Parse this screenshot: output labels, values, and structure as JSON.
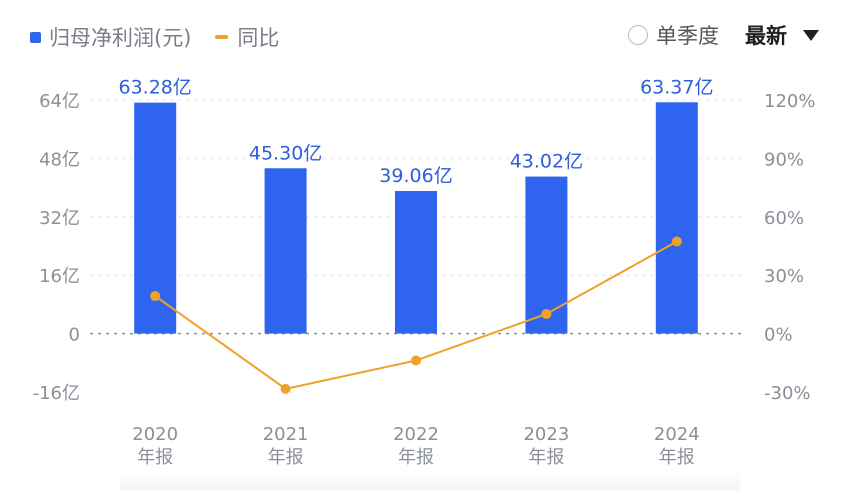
{
  "legend": {
    "bar_label": "归母净利润(元)",
    "line_label": "同比"
  },
  "controls": {
    "season_label": "单季度",
    "latest_label": "最新"
  },
  "colors": {
    "bar": "#2f64ee",
    "bar_label": "#2d5fd8",
    "line": "#f0a127",
    "axis_text": "#8a8f98",
    "grid": "#e3e5ea",
    "zero": "#8a8f98"
  },
  "chart_data": {
    "type": "bar",
    "categories": [
      "2020",
      "2021",
      "2022",
      "2023",
      "2024"
    ],
    "category_sub": [
      "年报",
      "年报",
      "年报",
      "年报",
      "年报"
    ],
    "series": [
      {
        "name": "归母净利润(元)",
        "type": "bar",
        "axis": "left",
        "unit": "亿",
        "values": [
          63.28,
          45.3,
          39.06,
          43.02,
          63.37
        ],
        "labels": [
          "63.28亿",
          "45.30亿",
          "39.06亿",
          "43.02亿",
          "63.37亿"
        ]
      },
      {
        "name": "同比",
        "type": "line",
        "axis": "right",
        "unit": "%",
        "values": [
          19.3,
          -28.4,
          -13.8,
          10.1,
          47.3
        ]
      }
    ],
    "left_axis": {
      "ticks": [
        64,
        48,
        32,
        16,
        0,
        -16
      ],
      "tick_labels": [
        "64亿",
        "48亿",
        "32亿",
        "16亿",
        "0",
        "-16亿"
      ],
      "range": [
        -16,
        64
      ]
    },
    "right_axis": {
      "ticks": [
        120,
        90,
        60,
        30,
        0,
        -30
      ],
      "tick_labels": [
        "120%",
        "90%",
        "60%",
        "30%",
        "0%",
        "-30%"
      ],
      "range": [
        -30,
        120
      ]
    },
    "grid": true,
    "legend_position": "top-left"
  }
}
